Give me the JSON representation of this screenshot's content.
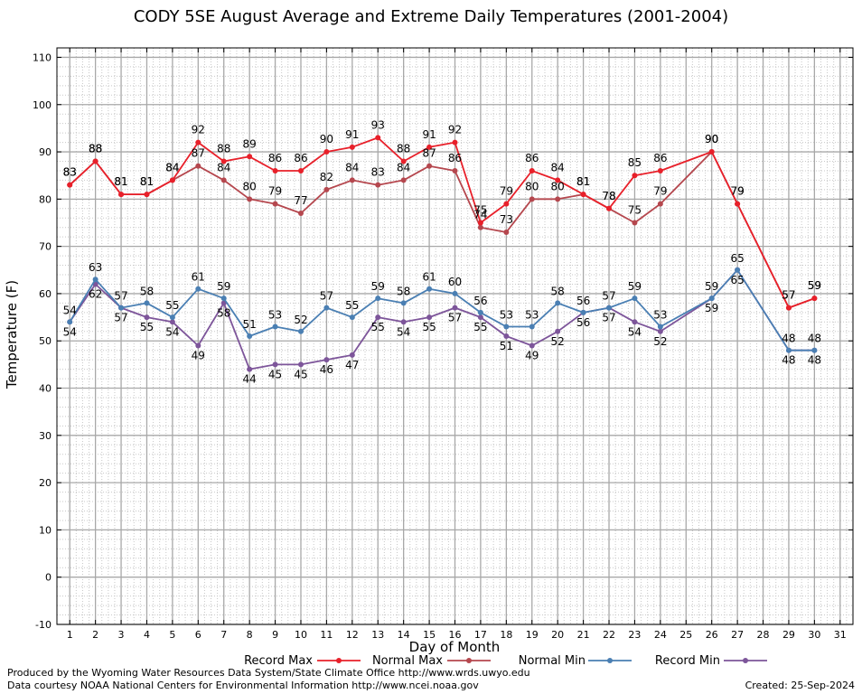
{
  "chart_data": {
    "type": "line",
    "title": "CODY 5SE August Average and Extreme Daily Temperatures (2001-2004)",
    "xlabel": "Day of Month",
    "ylabel": "Temperature (F)",
    "xlim": [
      0.5,
      31.5
    ],
    "ylim": [
      -10,
      112
    ],
    "yticks": [
      -10,
      0,
      10,
      20,
      30,
      40,
      50,
      60,
      70,
      80,
      90,
      100,
      110
    ],
    "xticks": [
      1,
      2,
      3,
      4,
      5,
      6,
      7,
      8,
      9,
      10,
      11,
      12,
      13,
      14,
      15,
      16,
      17,
      18,
      19,
      20,
      21,
      22,
      23,
      24,
      25,
      26,
      27,
      28,
      29,
      30,
      31
    ],
    "grid": true,
    "legend_position": "bottom",
    "series": [
      {
        "name": "Record Max",
        "color": "#e8202a",
        "x": [
          1,
          2,
          3,
          4,
          5,
          6,
          7,
          8,
          9,
          10,
          11,
          12,
          13,
          14,
          15,
          16,
          17,
          18,
          19,
          20,
          21,
          22,
          23,
          24,
          26,
          27,
          29,
          30
        ],
        "values": [
          83,
          88,
          81,
          81,
          84,
          92,
          88,
          89,
          86,
          86,
          90,
          91,
          93,
          88,
          91,
          92,
          75,
          79,
          86,
          84,
          81,
          78,
          85,
          86,
          90,
          79,
          57,
          59
        ]
      },
      {
        "name": "Normal Max",
        "color": "#b5474e",
        "x": [
          1,
          2,
          3,
          4,
          5,
          6,
          7,
          8,
          9,
          10,
          11,
          12,
          13,
          14,
          15,
          16,
          17,
          18,
          19,
          20,
          21,
          22,
          23,
          24,
          26,
          27,
          29,
          30
        ],
        "values": [
          83,
          88,
          81,
          81,
          84,
          87,
          84,
          80,
          79,
          77,
          82,
          84,
          83,
          84,
          87,
          86,
          74,
          73,
          80,
          80,
          81,
          78,
          75,
          79,
          90,
          79,
          57,
          59
        ]
      },
      {
        "name": "Normal Min",
        "color": "#4a7fb3",
        "x": [
          1,
          2,
          3,
          4,
          5,
          6,
          7,
          8,
          9,
          10,
          11,
          12,
          13,
          14,
          15,
          16,
          17,
          18,
          19,
          20,
          21,
          22,
          23,
          24,
          26,
          27,
          29,
          30
        ],
        "values": [
          54,
          63,
          57,
          58,
          55,
          61,
          59,
          51,
          53,
          52,
          57,
          55,
          59,
          58,
          61,
          60,
          56,
          53,
          53,
          58,
          56,
          57,
          59,
          53,
          59,
          65,
          48,
          48
        ]
      },
      {
        "name": "Record Min",
        "color": "#7d559a",
        "x": [
          1,
          2,
          3,
          4,
          5,
          6,
          7,
          8,
          9,
          10,
          11,
          12,
          13,
          14,
          15,
          16,
          17,
          18,
          19,
          20,
          21,
          22,
          23,
          24,
          26,
          27,
          29,
          30
        ],
        "values": [
          54,
          62,
          57,
          55,
          54,
          49,
          58,
          44,
          45,
          45,
          46,
          47,
          55,
          54,
          55,
          57,
          55,
          51,
          49,
          52,
          56,
          57,
          54,
          52,
          59,
          65,
          48,
          48
        ]
      }
    ]
  },
  "footer": {
    "credit_line_1": "Produced by the Wyoming Water Resources Data System/State Climate Office http://www.wrds.uwyo.edu",
    "credit_line_2": "Data courtesy NOAA National Centers for Environmental Information http://www.ncei.noaa.gov",
    "created": "Created:  25-Sep-2024"
  }
}
